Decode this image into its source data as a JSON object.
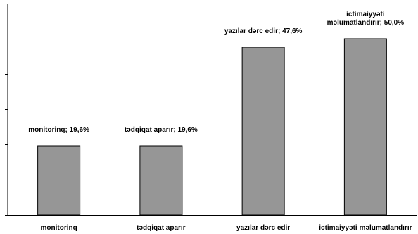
{
  "chart_data": {
    "type": "bar",
    "categories": [
      "monitorinq",
      "tədqiqat aparır",
      "yazılar dərc edir",
      "ictimaiyyəti məlumatlandırır"
    ],
    "values": [
      19.6,
      19.6,
      47.6,
      50.0
    ],
    "data_labels": [
      [
        "monitorinq; 19,6%"
      ],
      [
        "tədqiqat aparır; 19,6%"
      ],
      [
        "yazılar dərc edir; 47,6%"
      ],
      [
        "ictimaiyyəti",
        "məlumatlandırır; 50,0%"
      ]
    ],
    "ylim": [
      0,
      60
    ],
    "y_tick_step": 10,
    "y_tick_labels_shown": false,
    "grid": false,
    "bar_color": "#969696",
    "bar_edge_color": "#000000"
  }
}
